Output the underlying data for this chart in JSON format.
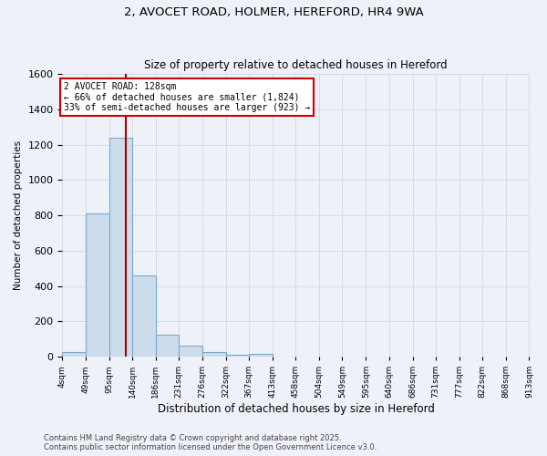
{
  "title_line1": "2, AVOCET ROAD, HOLMER, HEREFORD, HR4 9WA",
  "title_line2": "Size of property relative to detached houses in Hereford",
  "xlabel": "Distribution of detached houses by size in Hereford",
  "ylabel": "Number of detached properties",
  "bar_color": "#ccdcec",
  "bar_edge_color": "#7aa8cc",
  "grid_color": "#d0dcea",
  "background_color": "#eef2f8",
  "annotation_box_color": "#ffffff",
  "annotation_box_edge": "#cc0000",
  "red_line_color": "#aa0000",
  "property_sqm": 128,
  "bins": [
    4,
    49,
    95,
    140,
    186,
    231,
    276,
    322,
    367,
    413,
    458,
    504,
    549,
    595,
    640,
    686,
    731,
    777,
    822,
    868,
    913
  ],
  "bin_labels": [
    "4sqm",
    "49sqm",
    "95sqm",
    "140sqm",
    "186sqm",
    "231sqm",
    "276sqm",
    "322sqm",
    "367sqm",
    "413sqm",
    "458sqm",
    "504sqm",
    "549sqm",
    "595sqm",
    "640sqm",
    "686sqm",
    "731sqm",
    "777sqm",
    "822sqm",
    "868sqm",
    "913sqm"
  ],
  "counts": [
    28,
    810,
    1240,
    460,
    125,
    60,
    28,
    10,
    16,
    0,
    0,
    0,
    0,
    0,
    0,
    0,
    0,
    0,
    0,
    0
  ],
  "annotation_text_line1": "2 AVOCET ROAD: 128sqm",
  "annotation_text_line2": "← 66% of detached houses are smaller (1,824)",
  "annotation_text_line3": "33% of semi-detached houses are larger (923) →",
  "footnote_line1": "Contains HM Land Registry data © Crown copyright and database right 2025.",
  "footnote_line2": "Contains public sector information licensed under the Open Government Licence v3.0.",
  "ylim": [
    0,
    1600
  ],
  "yticks": [
    0,
    200,
    400,
    600,
    800,
    1000,
    1200,
    1400,
    1600
  ]
}
